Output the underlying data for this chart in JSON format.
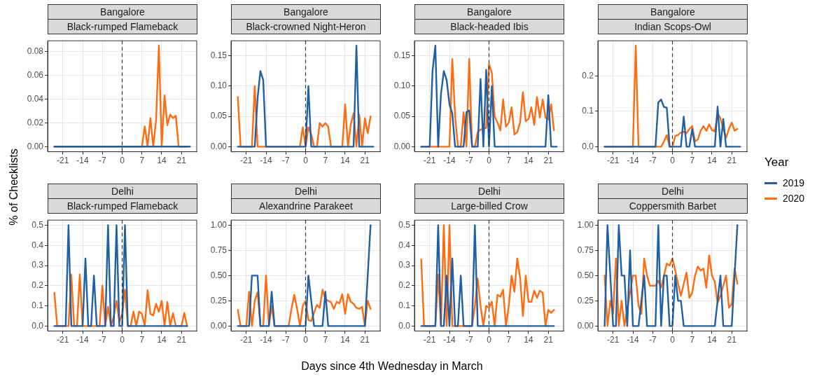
{
  "chart_data": [
    {
      "type": "line",
      "title": "Bangalore",
      "subtitle": "Black-rumped Flameback",
      "ylabel": "% of Checklists",
      "legend_title": "Year",
      "legend": "right",
      "grid": true,
      "xlim": [
        -26.4,
        26.4
      ],
      "xticks": [
        -21,
        -14,
        -7,
        0,
        7,
        14,
        21
      ],
      "ylim": [
        -0.0043,
        0.089
      ],
      "yticks": [
        {
          "value": 0,
          "label": "0.00"
        },
        {
          "value": 0.02,
          "label": "0.02"
        },
        {
          "value": 0.04,
          "label": "0.04"
        },
        {
          "value": 0.06,
          "label": "0.06"
        },
        {
          "value": 0.08,
          "label": "0.08"
        }
      ],
      "ref_lines": [
        {
          "axis": "x",
          "value": 0,
          "line_style": "dashed"
        }
      ],
      "series": [
        {
          "name": "2019",
          "color": "#1f5fa5",
          "x": [
            -24,
            24
          ],
          "values": [
            0,
            0
          ]
        },
        {
          "name": "2020",
          "color": "#ff6b0f",
          "x": [
            -24,
            7,
            8,
            9,
            10,
            11,
            12,
            13,
            14,
            15,
            16,
            17,
            18,
            19,
            20,
            23
          ],
          "values": [
            0,
            0,
            0.017,
            0,
            0.024,
            0,
            0.022,
            0.085,
            0,
            0.043,
            0.018,
            0.027,
            0.024,
            0.026,
            0,
            0
          ]
        }
      ]
    },
    {
      "type": "line",
      "title": "Bangalore",
      "subtitle": "Black-crowned Night-Heron",
      "grid": true,
      "xlim": [
        -26.4,
        26.4
      ],
      "xticks": [
        -21,
        -14,
        -7,
        0,
        7,
        14,
        21
      ],
      "ylim": [
        -0.0084,
        0.175
      ],
      "yticks": [
        {
          "value": 0,
          "label": "0.00"
        },
        {
          "value": 0.05,
          "label": "0.05"
        },
        {
          "value": 0.1,
          "label": "0.10"
        },
        {
          "value": 0.15,
          "label": "0.15"
        }
      ],
      "ref_lines": [
        {
          "axis": "x",
          "value": 0,
          "line_style": "dashed"
        }
      ],
      "series": [
        {
          "name": "2019",
          "color": "#1f5fa5",
          "x": [
            -24,
            -18,
            -17,
            -16,
            -15,
            -14,
            0,
            1,
            2,
            17,
            18,
            19,
            24
          ],
          "values": [
            0,
            0,
            0.08,
            0.125,
            0.11,
            0,
            0,
            0.1,
            0,
            0,
            0.167,
            0,
            0
          ]
        },
        {
          "name": "2020",
          "color": "#ff6b0f",
          "x": [
            -24,
            -23,
            -19,
            -18,
            -17,
            -2,
            -1,
            0,
            1,
            2,
            3,
            4,
            5,
            6,
            7,
            8,
            9,
            13,
            14,
            15,
            16,
            17,
            18,
            19,
            20,
            21,
            22,
            23
          ],
          "values": [
            0.082,
            0,
            0,
            0.1,
            0,
            0,
            0.032,
            0,
            0.032,
            0.02,
            0,
            0,
            0.039,
            0.033,
            0.039,
            0.033,
            0,
            0,
            0.07,
            0,
            0.037,
            0.055,
            0,
            0.053,
            0,
            0.047,
            0.022,
            0.05
          ]
        }
      ]
    },
    {
      "type": "line",
      "title": "Bangalore",
      "subtitle": "Black-headed Ibis",
      "grid": true,
      "xlim": [
        -26.4,
        26.4
      ],
      "xticks": [
        -21,
        -14,
        -7,
        0,
        7,
        14,
        21
      ],
      "ylim": [
        -0.0084,
        0.175
      ],
      "yticks": [
        {
          "value": 0,
          "label": "0.00"
        },
        {
          "value": 0.05,
          "label": "0.05"
        },
        {
          "value": 0.1,
          "label": "0.10"
        },
        {
          "value": 0.15,
          "label": "0.15"
        }
      ],
      "ref_lines": [
        {
          "axis": "x",
          "value": 0,
          "line_style": "dashed"
        }
      ],
      "series": [
        {
          "name": "2019",
          "color": "#1f5fa5",
          "x": [
            -24,
            -21,
            -20,
            -19,
            -18,
            -17,
            -16,
            -15,
            -14,
            -13,
            -12,
            -9,
            -8,
            -7,
            -6,
            -4,
            -3,
            -2,
            -1,
            0,
            1,
            2,
            20,
            21,
            22,
            24
          ],
          "values": [
            0,
            0,
            0.125,
            0.167,
            0,
            0.087,
            0.125,
            0.11,
            0.07,
            0.055,
            0,
            0,
            0.057,
            0.06,
            0,
            0,
            0.112,
            0,
            0.127,
            0,
            0.1,
            0,
            0,
            0.085,
            0,
            0
          ]
        },
        {
          "name": "2020",
          "color": "#ff6b0f",
          "x": [
            -24,
            -14,
            -13,
            -12,
            -11,
            -10,
            -9,
            -8,
            -7,
            -6,
            -5,
            -4,
            -3,
            -2,
            -1,
            0,
            1,
            2,
            3,
            4,
            5,
            6,
            7,
            8,
            9,
            10,
            11,
            12,
            13,
            14,
            15,
            16,
            17,
            18,
            19,
            20,
            21,
            22,
            23
          ],
          "values": [
            0,
            0,
            0.145,
            0.05,
            0,
            0,
            0.057,
            0,
            0.145,
            0,
            0,
            0.024,
            0.028,
            0.03,
            0.031,
            0.137,
            0.122,
            0.05,
            0.04,
            0.027,
            0.078,
            0.033,
            0.04,
            0.065,
            0.02,
            0.024,
            0.04,
            0.09,
            0.042,
            0.046,
            0.065,
            0.036,
            0.082,
            0.048,
            0.078,
            0.048,
            0.045,
            0.07,
            0.027
          ]
        }
      ]
    },
    {
      "type": "line",
      "title": "Bangalore",
      "subtitle": "Indian Scops-Owl",
      "grid": true,
      "xlim": [
        -26.4,
        26.4
      ],
      "xticks": [
        -21,
        -14,
        -7,
        0,
        7,
        14,
        21
      ],
      "ylim": [
        -0.0143,
        0.299
      ],
      "yticks": [
        {
          "value": 0,
          "label": "0.0"
        },
        {
          "value": 0.1,
          "label": "0.1"
        },
        {
          "value": 0.2,
          "label": "0.2"
        }
      ],
      "ref_lines": [
        {
          "axis": "x",
          "value": 0,
          "line_style": "dashed"
        }
      ],
      "series": [
        {
          "name": "2019",
          "color": "#1f5fa5",
          "x": [
            -24,
            -6,
            -5,
            -4,
            -3,
            -2,
            -1,
            3,
            4,
            5,
            6,
            7,
            8,
            15,
            16,
            17,
            18,
            19,
            24
          ],
          "values": [
            0,
            0,
            0.125,
            0.133,
            0.112,
            0.11,
            0,
            0,
            0.085,
            0,
            0,
            0.05,
            0,
            0,
            0.113,
            0,
            0.078,
            0,
            0
          ]
        },
        {
          "name": "2020",
          "color": "#ff6b0f",
          "x": [
            -24,
            -14,
            -13,
            -12,
            -4,
            -3,
            -2,
            -1,
            0,
            1,
            2,
            3,
            4,
            5,
            6,
            7,
            8,
            9,
            10,
            11,
            12,
            13,
            14,
            15,
            16,
            17,
            18,
            19,
            20,
            21,
            22,
            23
          ],
          "values": [
            0,
            0,
            0.285,
            0,
            0,
            0.015,
            0.033,
            0,
            0,
            0.03,
            0.033,
            0.04,
            0.042,
            0.038,
            0.05,
            0.058,
            0.015,
            0.02,
            0.045,
            0.058,
            0.045,
            0.063,
            0.047,
            0.043,
            0.095,
            0.08,
            0.05,
            0.025,
            0.05,
            0.068,
            0.045,
            0.05
          ]
        }
      ]
    },
    {
      "type": "line",
      "title": "Delhi",
      "subtitle": "Black-rumped Flameback",
      "grid": true,
      "xlim": [
        -26.4,
        26.4
      ],
      "xticks": [
        -21,
        -14,
        -7,
        0,
        7,
        14,
        21
      ],
      "ylim": [
        -0.025,
        0.525
      ],
      "yticks": [
        {
          "value": 0,
          "label": "0.0"
        },
        {
          "value": 0.1,
          "label": "0.1"
        },
        {
          "value": 0.2,
          "label": "0.2"
        },
        {
          "value": 0.3,
          "label": "0.3"
        },
        {
          "value": 0.4,
          "label": "0.4"
        },
        {
          "value": 0.5,
          "label": "0.5"
        }
      ],
      "ref_lines": [
        {
          "axis": "x",
          "value": 0,
          "line_style": "dashed"
        }
      ],
      "series": [
        {
          "name": "2019",
          "color": "#1f5fa5",
          "x": [
            -24,
            -20,
            -19,
            -18,
            -14,
            -13,
            -12,
            -11,
            -10,
            -9,
            -6,
            -5,
            -4,
            -3,
            -2,
            -1,
            0,
            1,
            2,
            23
          ],
          "values": [
            0,
            0,
            0.5,
            0,
            0,
            0.335,
            0,
            0,
            0.25,
            0,
            0,
            0.5,
            0,
            0,
            0.5,
            0,
            0,
            0.5,
            0,
            0
          ]
        },
        {
          "name": "2020",
          "color": "#ff6b0f",
          "x": [
            -24,
            -23,
            -19,
            -18,
            -17,
            -16,
            -15,
            -14,
            -8,
            -7,
            -6,
            -5,
            -4,
            -3,
            -2,
            -1,
            0,
            1,
            2,
            3,
            4,
            5,
            6,
            7,
            8,
            9,
            10,
            11,
            12,
            13,
            14,
            15,
            16,
            17,
            18,
            19,
            21,
            22,
            23
          ],
          "values": [
            0.165,
            0,
            0,
            0.255,
            0,
            0,
            0.255,
            0,
            0,
            0.2,
            0,
            0.095,
            0,
            0.045,
            0.125,
            0.02,
            0.06,
            0.18,
            0,
            0,
            0.072,
            0,
            0.072,
            0.06,
            0,
            0.178,
            0.06,
            0.053,
            0.11,
            0.07,
            0.125,
            0,
            0.12,
            0,
            0.063,
            0,
            0,
            0.065,
            0
          ]
        }
      ]
    },
    {
      "type": "line",
      "title": "Delhi",
      "subtitle": "Alexandrine Parakeet",
      "xlabel": "Days since 4th Wednesday in March",
      "grid": true,
      "xlim": [
        -26.4,
        26.4
      ],
      "xticks": [
        -21,
        -14,
        -7,
        0,
        7,
        14,
        21
      ],
      "ylim": [
        -0.05,
        1.05
      ],
      "yticks": [
        {
          "value": 0,
          "label": "0.00"
        },
        {
          "value": 0.25,
          "label": "0.25"
        },
        {
          "value": 0.5,
          "label": "0.50"
        },
        {
          "value": 0.75,
          "label": "0.75"
        },
        {
          "value": 1,
          "label": "1.00"
        }
      ],
      "ref_lines": [
        {
          "axis": "x",
          "value": 0,
          "line_style": "dashed"
        }
      ],
      "series": [
        {
          "name": "2019",
          "color": "#1f5fa5",
          "x": [
            -24,
            -20,
            -19,
            -17,
            -16,
            -13,
            -12,
            -11,
            0,
            1,
            2,
            3,
            6,
            7,
            8,
            21,
            23
          ],
          "values": [
            0,
            0,
            0.5,
            0.5,
            0,
            0,
            0.34,
            0,
            0,
            0.5,
            0.25,
            0,
            0,
            0.34,
            0,
            0,
            1
          ]
        },
        {
          "name": "2020",
          "color": "#ff6b0f",
          "x": [
            -24,
            -23,
            -21,
            -20,
            -19,
            -18,
            -17,
            -16,
            -15,
            -14,
            -13,
            -12,
            -11,
            -6,
            -5,
            -4,
            -3,
            -2,
            -1,
            0,
            1,
            2,
            3,
            4,
            5,
            6,
            7,
            8,
            9,
            10,
            11,
            12,
            13,
            14,
            15,
            16,
            17,
            18,
            19,
            20,
            21,
            22,
            23
          ],
          "values": [
            0.16,
            0,
            0,
            0.34,
            0,
            0.25,
            0.335,
            0,
            0,
            0.5,
            0,
            0.2,
            0,
            0,
            0.17,
            0.31,
            0.17,
            0,
            0.2,
            0.25,
            0.06,
            0.05,
            0.13,
            0.21,
            0.18,
            0.36,
            0.27,
            0.25,
            0.235,
            0.17,
            0.24,
            0.225,
            0.315,
            0.12,
            0.315,
            0.24,
            0.22,
            0.18,
            0.17,
            0.19,
            0,
            0.25,
            0.17
          ]
        }
      ]
    },
    {
      "type": "line",
      "title": "Delhi",
      "subtitle": "Large-billed Crow",
      "grid": true,
      "xlim": [
        -26.4,
        26.4
      ],
      "xticks": [
        -21,
        -14,
        -7,
        0,
        7,
        14,
        21
      ],
      "ylim": [
        -0.025,
        0.525
      ],
      "yticks": [
        {
          "value": 0,
          "label": "0.0"
        },
        {
          "value": 0.1,
          "label": "0.1"
        },
        {
          "value": 0.2,
          "label": "0.2"
        },
        {
          "value": 0.3,
          "label": "0.3"
        },
        {
          "value": 0.4,
          "label": "0.4"
        },
        {
          "value": 0.5,
          "label": "0.5"
        }
      ],
      "ref_lines": [
        {
          "axis": "x",
          "value": 0,
          "line_style": "dashed"
        }
      ],
      "series": [
        {
          "name": "2019",
          "color": "#1f5fa5",
          "x": [
            -24,
            -19,
            -18,
            -17,
            -16,
            -15,
            -14,
            -13,
            -12,
            -11,
            -10,
            -9,
            -6,
            -5,
            -4,
            23
          ],
          "values": [
            0,
            0,
            0.5,
            0,
            0,
            0.25,
            0,
            0.335,
            0,
            0,
            0.25,
            0,
            0,
            0.5,
            0,
            0
          ]
        },
        {
          "name": "2020",
          "color": "#ff6b0f",
          "x": [
            -24,
            -23,
            -19,
            -18,
            -17,
            -16,
            -15,
            -14,
            -13,
            -6,
            -5,
            -4,
            -3,
            -2,
            -1,
            0,
            1,
            2,
            3,
            4,
            5,
            6,
            7,
            8,
            9,
            10,
            11,
            12,
            13,
            14,
            15,
            16,
            17,
            18,
            19,
            20,
            21,
            22,
            23
          ],
          "values": [
            0.33,
            0,
            0,
            0.255,
            0,
            0.5,
            0,
            0.5,
            0,
            0,
            0.1,
            0.235,
            0.1,
            0,
            0.1,
            0.09,
            0.12,
            0,
            0.155,
            0.145,
            0.18,
            0,
            0.1,
            0.25,
            0.17,
            0.335,
            0.24,
            0.05,
            0.25,
            0.12,
            0.12,
            0.175,
            0.14,
            0.175,
            0.165,
            0,
            0.08,
            0.065,
            0.08
          ]
        }
      ]
    },
    {
      "type": "line",
      "title": "Delhi",
      "subtitle": "Coppersmith Barbet",
      "grid": true,
      "xlim": [
        -26.4,
        26.4
      ],
      "xticks": [
        -21,
        -14,
        -7,
        0,
        7,
        14,
        21
      ],
      "ylim": [
        -0.05,
        1.05
      ],
      "yticks": [
        {
          "value": 0,
          "label": "0.00"
        },
        {
          "value": 0.25,
          "label": "0.25"
        },
        {
          "value": 0.5,
          "label": "0.50"
        },
        {
          "value": 0.75,
          "label": "0.75"
        },
        {
          "value": 1,
          "label": "1.00"
        }
      ],
      "ref_lines": [
        {
          "axis": "x",
          "value": 0,
          "line_style": "dashed"
        }
      ],
      "series": [
        {
          "name": "2019",
          "color": "#1f5fa5",
          "x": [
            -24,
            -23,
            -22,
            -21,
            -20,
            -19,
            -18,
            -17,
            -16,
            -15,
            -14,
            -12,
            -11,
            -10,
            -9,
            -6,
            -5,
            -4,
            -3,
            -2,
            -1,
            0,
            1,
            2,
            3,
            4,
            15,
            16,
            17,
            18,
            21,
            23
          ],
          "values": [
            0,
            1,
            0.5,
            0,
            0,
            1,
            0.5,
            0.5,
            0,
            0.75,
            0,
            0,
            0.25,
            0.5,
            0,
            0,
            1,
            0,
            0.5,
            0.5,
            0,
            0,
            0.5,
            0.25,
            0.25,
            0,
            0,
            0.25,
            0.5,
            0,
            0,
            1
          ]
        },
        {
          "name": "2020",
          "color": "#ff6b0f",
          "x": [
            -24,
            -23,
            -22,
            -21,
            -20,
            -19,
            -18,
            -17,
            -14,
            -13,
            -12,
            -11,
            -10,
            -9,
            -8,
            -7,
            -6,
            -5,
            -4,
            -3,
            -2,
            -1,
            0,
            1,
            2,
            3,
            4,
            5,
            6,
            7,
            8,
            9,
            10,
            11,
            12,
            13,
            14,
            15,
            16,
            17,
            18,
            19,
            20,
            21,
            22,
            23
          ],
          "values": [
            0.5,
            0,
            0.25,
            0.12,
            0.67,
            0,
            0.25,
            0,
            0.5,
            0.5,
            0.2,
            0.12,
            0.67,
            0.5,
            0.4,
            0.4,
            0.4,
            0.45,
            0.38,
            0.5,
            0.62,
            0.6,
            0.67,
            0.55,
            0.42,
            0.3,
            0.42,
            0.53,
            0.28,
            0.33,
            0.5,
            0.59,
            0.55,
            0.57,
            0.38,
            0.7,
            0.5,
            0.44,
            0.23,
            0.3,
            0.4,
            0.5,
            0.18,
            0.22,
            0.57,
            0.42
          ]
        }
      ]
    }
  ]
}
